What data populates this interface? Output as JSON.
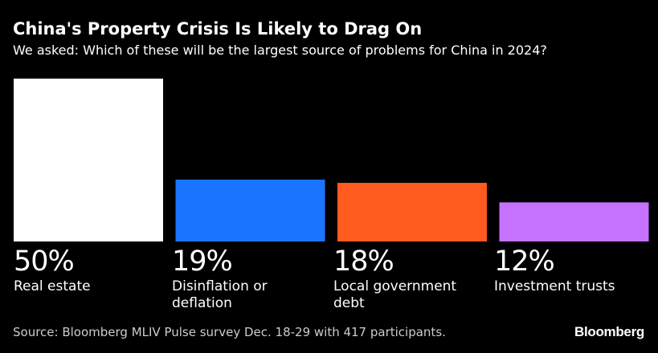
{
  "chart_data": {
    "type": "bar",
    "title": "China's Property Crisis Is Likely to Drag On",
    "subtitle": "We asked: Which of these will be the largest source of problems for China in 2024?",
    "categories": [
      "Real estate",
      "Disinflation or deflation",
      "Local government debt",
      "Investment trusts"
    ],
    "values": [
      50,
      19,
      18,
      12
    ],
    "value_labels": [
      "50%",
      "19%",
      "18%",
      "12%"
    ],
    "colors": [
      "#ffffff",
      "#1a74ff",
      "#ff5b1f",
      "#c472ff"
    ],
    "ylim": [
      0,
      50
    ],
    "grid": false
  },
  "footer": {
    "source": "Source: Bloomberg MLIV Pulse survey Dec. 18-29 with 417 participants.",
    "brand": "Bloomberg"
  }
}
